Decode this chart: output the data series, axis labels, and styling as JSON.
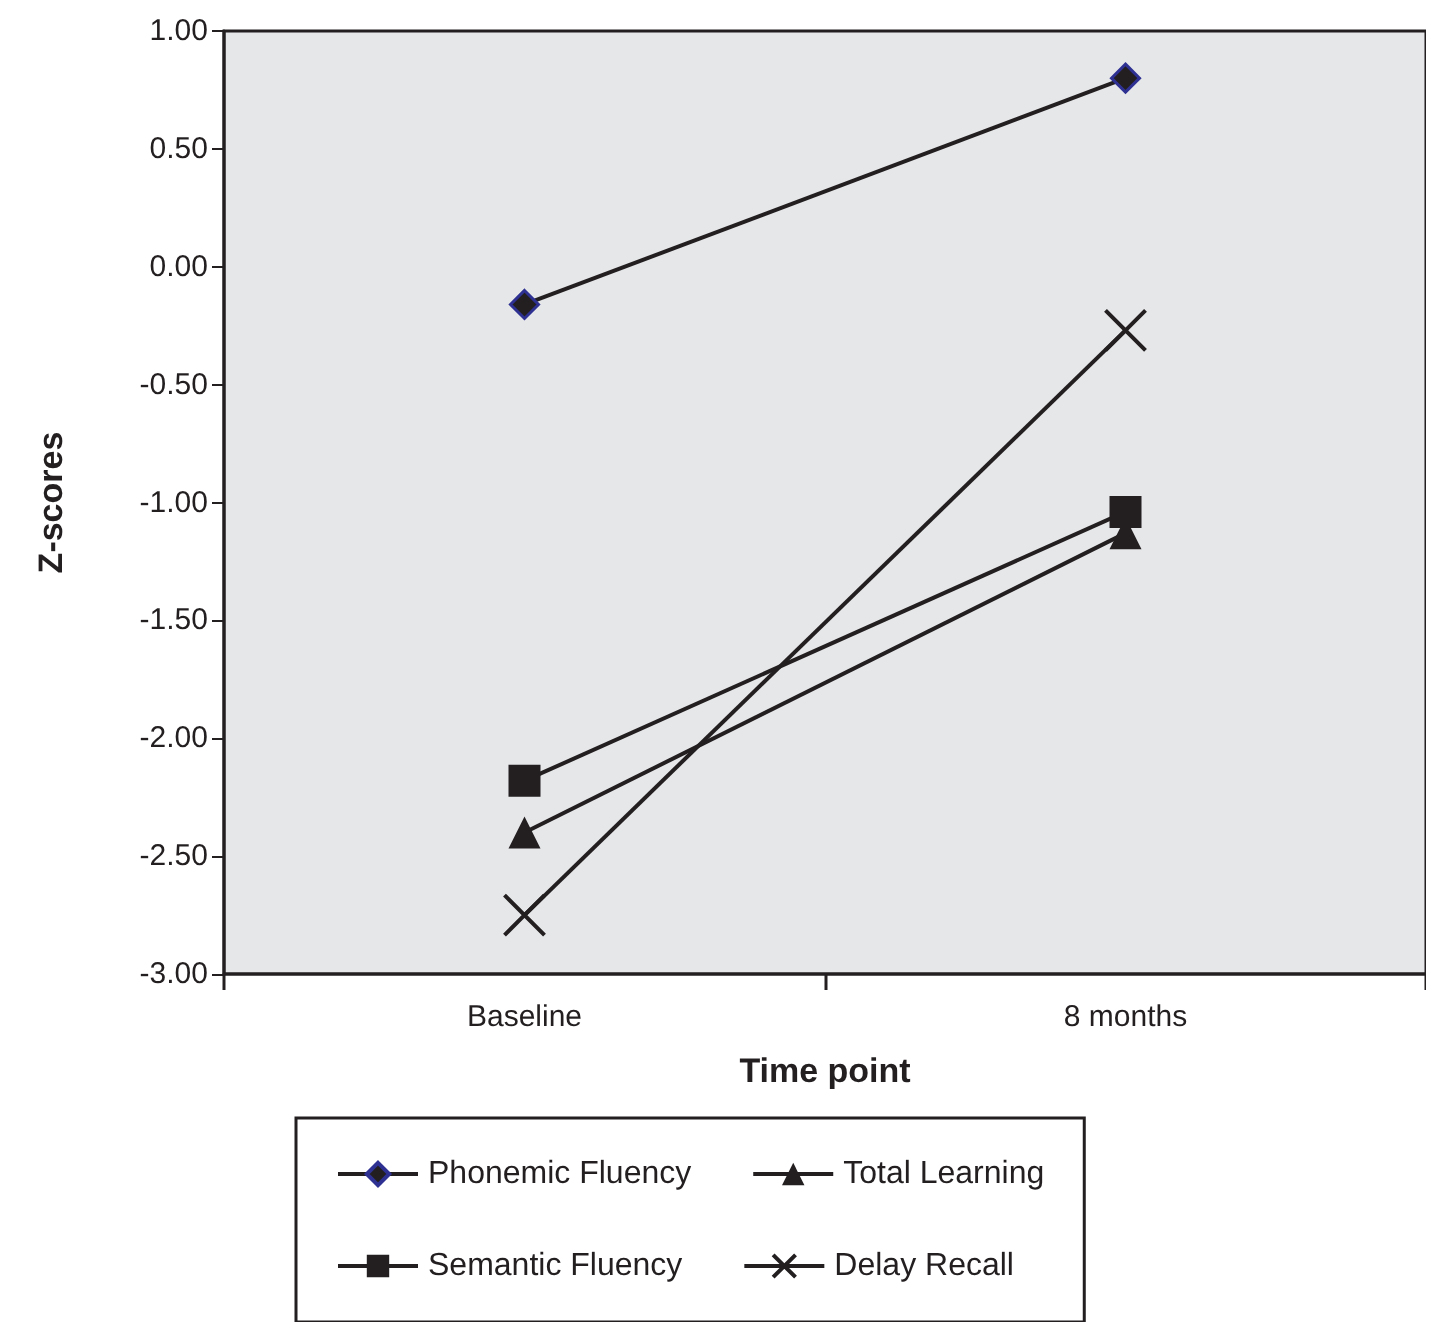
{
  "chart_data": {
    "type": "line",
    "xlabel": "Time point",
    "ylabel": "Z-scores",
    "categories": [
      "Baseline",
      "8 months"
    ],
    "series": [
      {
        "name": "Phonemic Fluency",
        "color": "#231f20",
        "marker": "diamond",
        "values": [
          -0.16,
          0.8
        ]
      },
      {
        "name": "Total Learning",
        "color": "#231f20",
        "marker": "triangle",
        "values": [
          -2.4,
          -1.13
        ]
      },
      {
        "name": "Semantic Fluency",
        "color": "#231f20",
        "marker": "square",
        "values": [
          -2.18,
          -1.04
        ]
      },
      {
        "name": "Delay Recall",
        "color": "#231f20",
        "marker": "cross",
        "values": [
          -2.75,
          -0.27
        ]
      }
    ],
    "ylim": [
      -3,
      1
    ],
    "yticks": [
      {
        "value": -3,
        "label": "-3.00"
      },
      {
        "value": -2.5,
        "label": "-2.50"
      },
      {
        "value": -2,
        "label": "-2.00"
      },
      {
        "value": -1.5,
        "label": "-1.50"
      },
      {
        "value": -1,
        "label": "-1.00"
      },
      {
        "value": -0.5,
        "label": "-0.50"
      },
      {
        "value": 0,
        "label": "0.00"
      },
      {
        "value": 0.5,
        "label": "0.50"
      },
      {
        "value": 1,
        "label": "1.00"
      }
    ],
    "grid": false,
    "legend": "bottom",
    "line_style": "solid"
  }
}
